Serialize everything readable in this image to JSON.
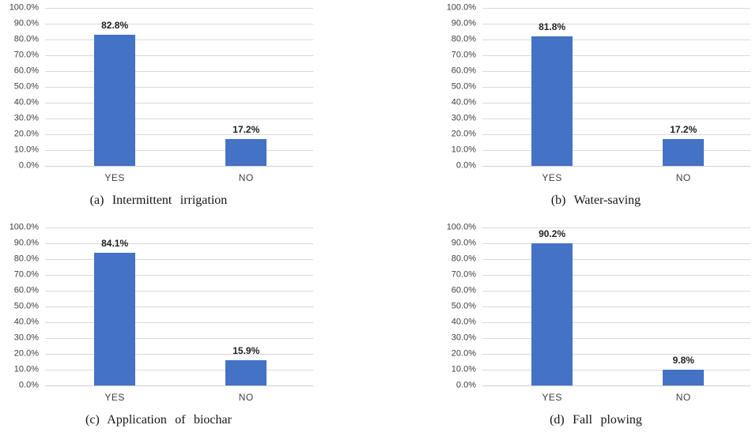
{
  "style": {
    "background": "#ffffff",
    "bar_color": "#4472C4",
    "gridline_color": "#d9d9d9",
    "axis_text_color": "#404040",
    "value_label_color": "#1f1f1f",
    "caption_color": "#141414"
  },
  "chart_data": [
    {
      "id": "a",
      "type": "bar",
      "caption": "(a) Intermittent irrigation",
      "categories": [
        "YES",
        "NO"
      ],
      "values": [
        82.8,
        17.2
      ],
      "value_labels": [
        "82.8%",
        "17.2%"
      ],
      "ylim": [
        0,
        100
      ],
      "ytick_step": 10,
      "yticks": [
        "100.0%",
        "90.0%",
        "80.0%",
        "70.0%",
        "60.0%",
        "50.0%",
        "40.0%",
        "30.0%",
        "20.0%",
        "10.0%",
        "0.0%"
      ],
      "grid": true,
      "legend": false,
      "bar_color": "#4472C4"
    },
    {
      "id": "b",
      "type": "bar",
      "caption": "(b) Water-saving",
      "categories": [
        "YES",
        "NO"
      ],
      "values": [
        81.8,
        17.2
      ],
      "value_labels": [
        "81.8%",
        "17.2%"
      ],
      "ylim": [
        0,
        100
      ],
      "ytick_step": 10,
      "yticks": [
        "100.0%",
        "90.0%",
        "80.0%",
        "70.0%",
        "60.0%",
        "50.0%",
        "40.0%",
        "30.0%",
        "20.0%",
        "10.0%",
        "0.0%"
      ],
      "grid": true,
      "legend": false,
      "bar_color": "#4472C4"
    },
    {
      "id": "c",
      "type": "bar",
      "caption": "(c) Application of biochar",
      "categories": [
        "YES",
        "NO"
      ],
      "values": [
        84.1,
        15.9
      ],
      "value_labels": [
        "84.1%",
        "15.9%"
      ],
      "ylim": [
        0,
        100
      ],
      "ytick_step": 10,
      "yticks": [
        "100.0%",
        "90.0%",
        "80.0%",
        "70.0%",
        "60.0%",
        "50.0%",
        "40.0%",
        "30.0%",
        "20.0%",
        "10.0%",
        "0.0%"
      ],
      "grid": true,
      "legend": false,
      "bar_color": "#4472C4"
    },
    {
      "id": "d",
      "type": "bar",
      "caption": "(d) Fall plowing",
      "categories": [
        "YES",
        "NO"
      ],
      "values": [
        90.2,
        9.8
      ],
      "value_labels": [
        "90.2%",
        "9.8%"
      ],
      "ylim": [
        0,
        100
      ],
      "ytick_step": 10,
      "yticks": [
        "100.0%",
        "90.0%",
        "80.0%",
        "70.0%",
        "60.0%",
        "50.0%",
        "40.0%",
        "30.0%",
        "20.0%",
        "10.0%",
        "0.0%"
      ],
      "grid": true,
      "legend": false,
      "bar_color": "#4472C4"
    }
  ]
}
